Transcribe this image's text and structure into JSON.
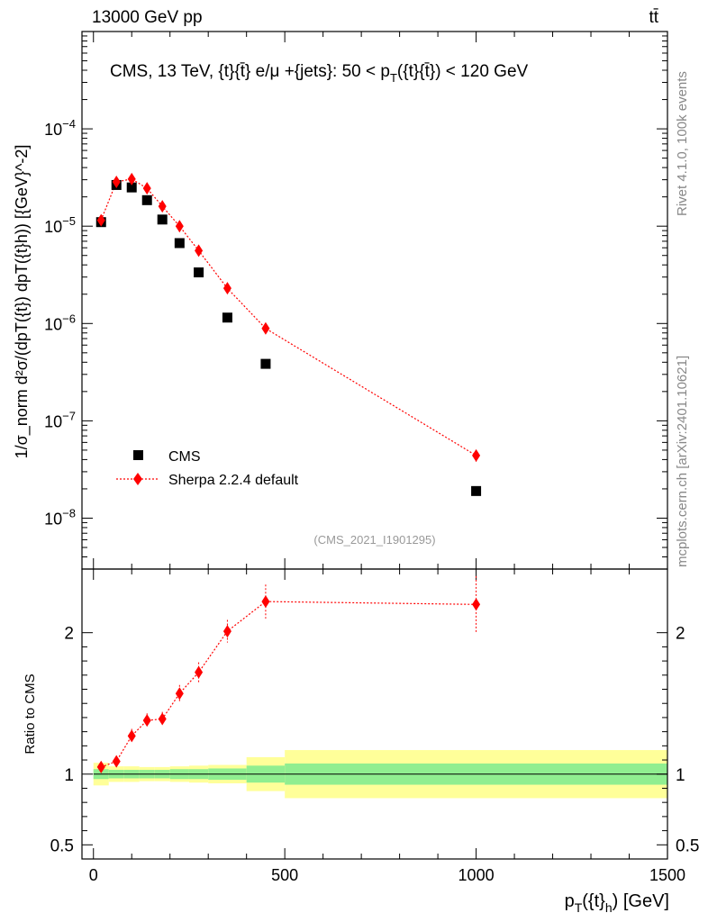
{
  "header": {
    "left": "13000 GeV pp",
    "right": "tt̄"
  },
  "side_labels": {
    "rivet": "Rivet 4.1.0,  100k events",
    "mcplots": "mcplots.cern.ch [arXiv:2401.10621]"
  },
  "chart_data": [
    {
      "type": "scatter",
      "panel": "main",
      "title": "CMS, 13 TeV, {t}{t̄} e/μ +{jets}: 50 <  pT({t}{t̄}) < 120 GeV",
      "title_parts": {
        "a": "CMS, 13 TeV, {t}{",
        "b": "} e/μ +{jets}: 50 <  p",
        "sub": "T",
        "c": "({t}{",
        "d": "}) < 120 GeV",
        "tbar": "t̄"
      },
      "ylabel": "1/σ_norm d²σ/(dpT({t}) dpT({t}h)) [{GeV}^-2]",
      "yscale": "log",
      "ylim": [
        3e-09,
        0.001
      ],
      "xlim": [
        -30,
        1500
      ],
      "yticks": [
        {
          "value": 0.0001,
          "base": "10",
          "exp": "−4"
        },
        {
          "value": 1e-05,
          "base": "10",
          "exp": "−5"
        },
        {
          "value": 1e-06,
          "base": "10",
          "exp": "−6"
        },
        {
          "value": 1e-07,
          "base": "10",
          "exp": "−7"
        },
        {
          "value": 1e-08,
          "base": "10",
          "exp": "−8"
        }
      ],
      "watermark": "(CMS_2021_I1901295)",
      "legend_position": "lower-left",
      "series": [
        {
          "name": "CMS",
          "color": "#000000",
          "marker": "square",
          "x": [
            20,
            60,
            100,
            140,
            180,
            225,
            275,
            350,
            450,
            1000
          ],
          "y": [
            1.1e-05,
            2.65e-05,
            2.5e-05,
            1.85e-05,
            1.17e-05,
            6.7e-06,
            3.35e-06,
            1.15e-06,
            3.85e-07,
            1.9e-08
          ],
          "xerr": [
            20,
            20,
            20,
            20,
            20,
            25,
            25,
            50,
            50,
            500
          ]
        },
        {
          "name": "Sherpa 2.2.4 default",
          "color": "#ff0000",
          "marker": "diamond",
          "x": [
            20,
            60,
            100,
            140,
            180,
            225,
            275,
            350,
            450,
            1000
          ],
          "y": [
            1.15e-05,
            2.85e-05,
            3.05e-05,
            2.45e-05,
            1.6e-05,
            1e-05,
            5.6e-06,
            2.3e-06,
            8.9e-07,
            4.4e-08
          ],
          "yerr": [
            5e-07,
            1.2e-06,
            1.5e-06,
            1.2e-06,
            8e-07,
            5e-07,
            3.5e-07,
            1.5e-07,
            9e-08,
            6e-09
          ]
        }
      ]
    },
    {
      "type": "scatter",
      "panel": "ratio",
      "ylabel": "Ratio to CMS",
      "xlabel": "pT({t}h) [GeV]",
      "xlabel_parts": {
        "a": "p",
        "sub1": "T",
        "b": "({t}",
        "sub2": "h",
        "c": ") [GeV]"
      },
      "xlim": [
        -30,
        1500
      ],
      "ylim": [
        0.4,
        2.45
      ],
      "xticks": [
        0,
        500,
        1000,
        1500
      ],
      "xtick_labels": [
        "0",
        "500",
        "1000",
        "1500"
      ],
      "yticks": [
        0.5,
        1,
        2
      ],
      "ytick_labels": [
        "0.5",
        "1",
        "2"
      ],
      "uncertainty_bands": {
        "edges": [
          0,
          40,
          80,
          120,
          160,
          200,
          250,
          300,
          400,
          500,
          1500
        ],
        "total": [
          0.08,
          0.055,
          0.055,
          0.05,
          0.05,
          0.055,
          0.06,
          0.065,
          0.12,
          0.17
        ],
        "stat": [
          0.035,
          0.03,
          0.03,
          0.03,
          0.03,
          0.035,
          0.035,
          0.04,
          0.06,
          0.075
        ],
        "total_color": "#ffff99",
        "stat_color": "#90ee90"
      },
      "series": [
        {
          "name": "Sherpa 2.2.4 default",
          "color": "#ff0000",
          "x": [
            20,
            60,
            100,
            140,
            180,
            225,
            275,
            350,
            450,
            1000
          ],
          "y": [
            1.05,
            1.09,
            1.27,
            1.38,
            1.39,
            1.57,
            1.72,
            2.01,
            2.22,
            2.2
          ],
          "yerr": [
            0.04,
            0.04,
            0.05,
            0.05,
            0.05,
            0.06,
            0.07,
            0.08,
            0.12,
            0.2
          ]
        }
      ]
    }
  ]
}
